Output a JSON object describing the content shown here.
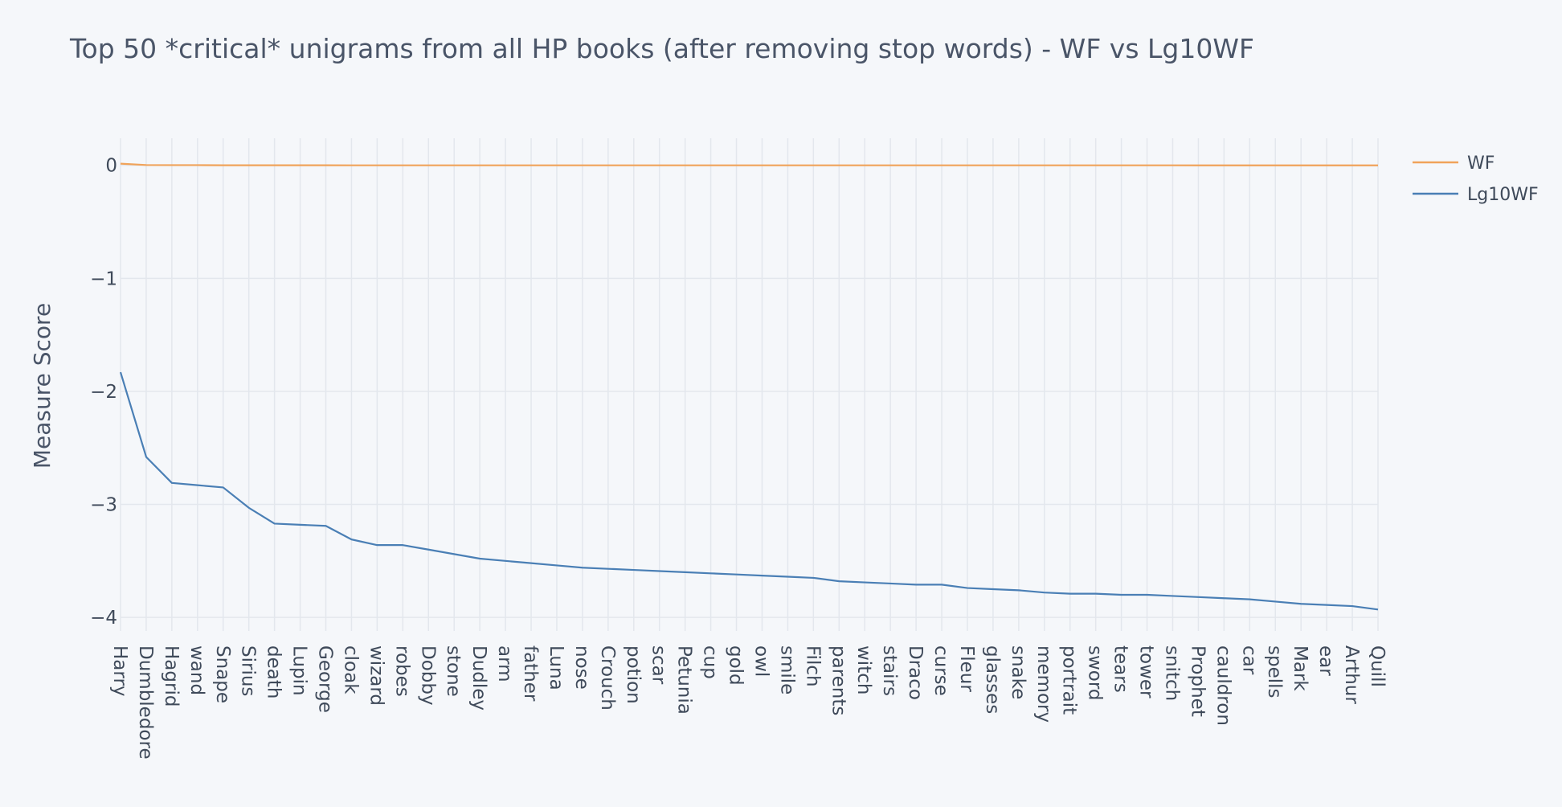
{
  "chart_data": {
    "type": "line",
    "title": "Top 50 *critical* unigrams from all HP books (after removing stop words) - WF vs Lg10WF",
    "xlabel": "",
    "ylabel": "Measure Score",
    "ylim": [
      -4.12,
      0.24
    ],
    "yticks": [
      0,
      -1,
      -2,
      -3,
      -4
    ],
    "ytick_labels": [
      "0",
      "−1",
      "−2",
      "−3",
      "−4"
    ],
    "grid": true,
    "legend_position": "top-right",
    "categories": [
      "Harry",
      "Dumbledore",
      "Hagrid",
      "wand",
      "Snape",
      "Sirius",
      "death",
      "Lupin",
      "George",
      "cloak",
      "wizard",
      "robes",
      "Dobby",
      "stone",
      "Dudley",
      "arm",
      "father",
      "Luna",
      "nose",
      "Crouch",
      "potion",
      "scar",
      "Petunia",
      "cup",
      "gold",
      "owl",
      "smile",
      "Filch",
      "parents",
      "witch",
      "stairs",
      "Draco",
      "curse",
      "Fleur",
      "glasses",
      "snake",
      "memory",
      "portrait",
      "sword",
      "tears",
      "tower",
      "snitch",
      "Prophet",
      "cauldron",
      "car",
      "spells",
      "Mark",
      "ear",
      "Arthur",
      "Quill"
    ],
    "series": [
      {
        "name": "WF",
        "color": "#f0a35a",
        "values": [
          0.015,
          0.003,
          0.002,
          0.002,
          0.001,
          0.001,
          0.001,
          0.001,
          0.001,
          0.0005,
          0.0004,
          0.0004,
          0.0004,
          0.0004,
          0.0003,
          0.0003,
          0.0003,
          0.0003,
          0.0003,
          0.0003,
          0.0003,
          0.0003,
          0.0002,
          0.0002,
          0.0002,
          0.0002,
          0.0002,
          0.0002,
          0.0002,
          0.0002,
          0.0002,
          0.0002,
          0.0002,
          0.0002,
          0.0002,
          0.0002,
          0.0002,
          0.0002,
          0.0002,
          0.0002,
          0.0002,
          0.0002,
          0.0001,
          0.0001,
          0.0001,
          0.0001,
          0.0001,
          0.0001,
          0.0001,
          0.0001
        ]
      },
      {
        "name": "Lg10WF",
        "color": "#4a7fb5",
        "values": [
          -1.83,
          -2.58,
          -2.81,
          -2.83,
          -2.85,
          -3.03,
          -3.17,
          -3.18,
          -3.19,
          -3.31,
          -3.36,
          -3.36,
          -3.4,
          -3.44,
          -3.48,
          -3.5,
          -3.52,
          -3.54,
          -3.56,
          -3.57,
          -3.58,
          -3.59,
          -3.6,
          -3.61,
          -3.62,
          -3.63,
          -3.64,
          -3.65,
          -3.68,
          -3.69,
          -3.7,
          -3.71,
          -3.71,
          -3.74,
          -3.75,
          -3.76,
          -3.78,
          -3.79,
          -3.79,
          -3.8,
          -3.8,
          -3.81,
          -3.82,
          -3.83,
          -3.84,
          -3.86,
          -3.88,
          -3.89,
          -3.9,
          -3.93
        ]
      }
    ]
  }
}
